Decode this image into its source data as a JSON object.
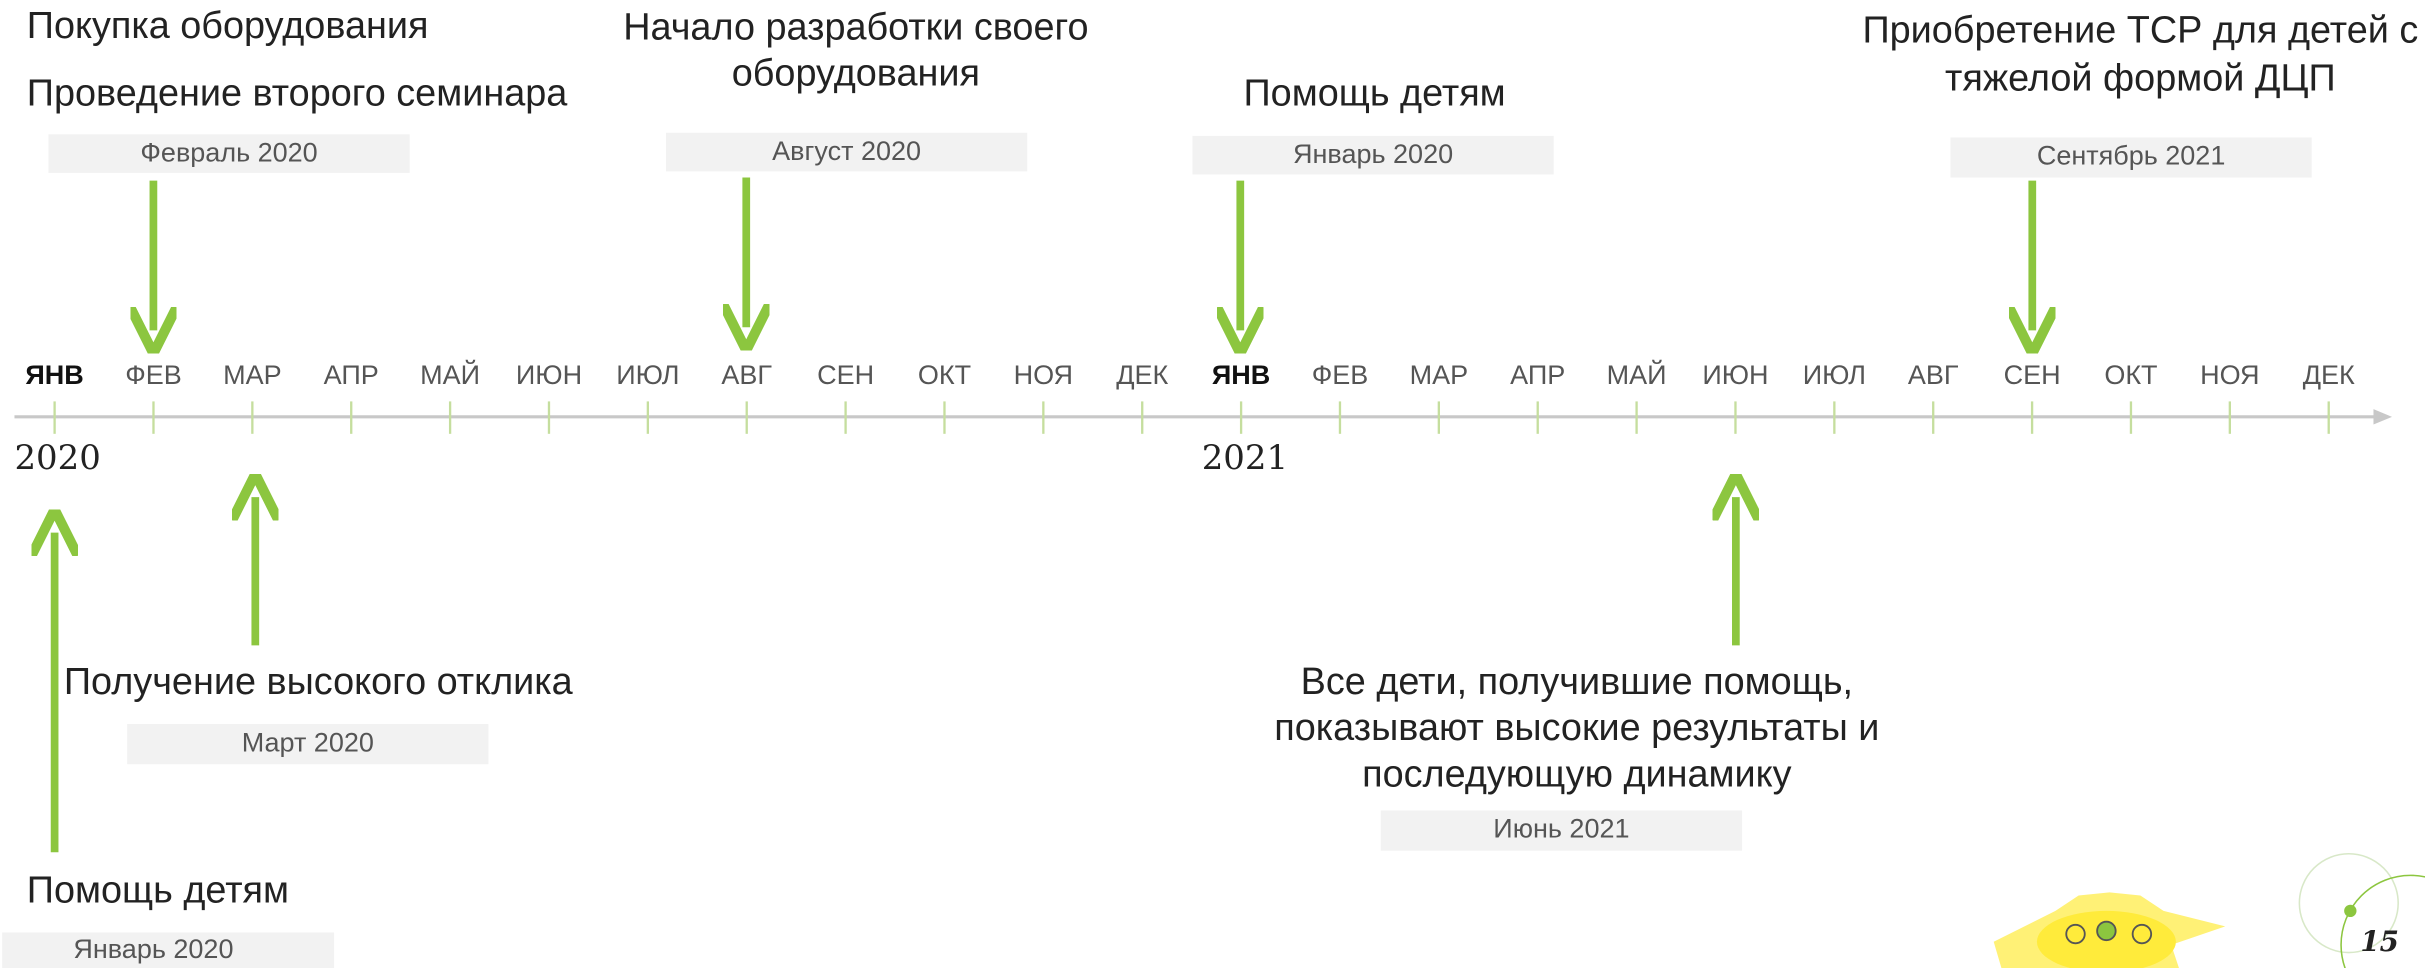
{
  "months": [
    "ЯНВ",
    "ФЕВ",
    "МАР",
    "АПР",
    "МАЙ",
    "ИЮН",
    "ИЮЛ",
    "АВГ",
    "СЕН",
    "ОКТ",
    "НОЯ",
    "ДЕК",
    "ЯНВ",
    "ФЕВ",
    "МАР",
    "АПР",
    "МАЙ",
    "ИЮН",
    "ИЮЛ",
    "АВГ",
    "СЕН",
    "ОКТ",
    "НОЯ",
    "ДЕК"
  ],
  "years": [
    "2020",
    "2021"
  ],
  "events": [
    {
      "titles": [
        "Покупка оборудования",
        "Проведение второго семинара"
      ],
      "date": "Февраль 2020"
    },
    {
      "titles": [
        "Начало разработки своего",
        "оборудования"
      ],
      "date": "Август 2020"
    },
    {
      "titles": [
        "Помощь детям"
      ],
      "date": "Январь 2020"
    },
    {
      "titles": [
        "Приобретение ТСР для детей с",
        "тяжелой формой ДЦП"
      ],
      "date": "Сентябрь 2021"
    },
    {
      "titles": [
        "Помощь детям"
      ],
      "date": "Январь 2020"
    },
    {
      "titles": [
        "Получение высокого отклика"
      ],
      "date": "Март 2020"
    },
    {
      "titles": [
        "Все дети, получившие помощь,",
        "показывают высокие результаты и",
        "последующую динамику"
      ],
      "date": "Июнь 2021"
    }
  ],
  "page_number": "15"
}
